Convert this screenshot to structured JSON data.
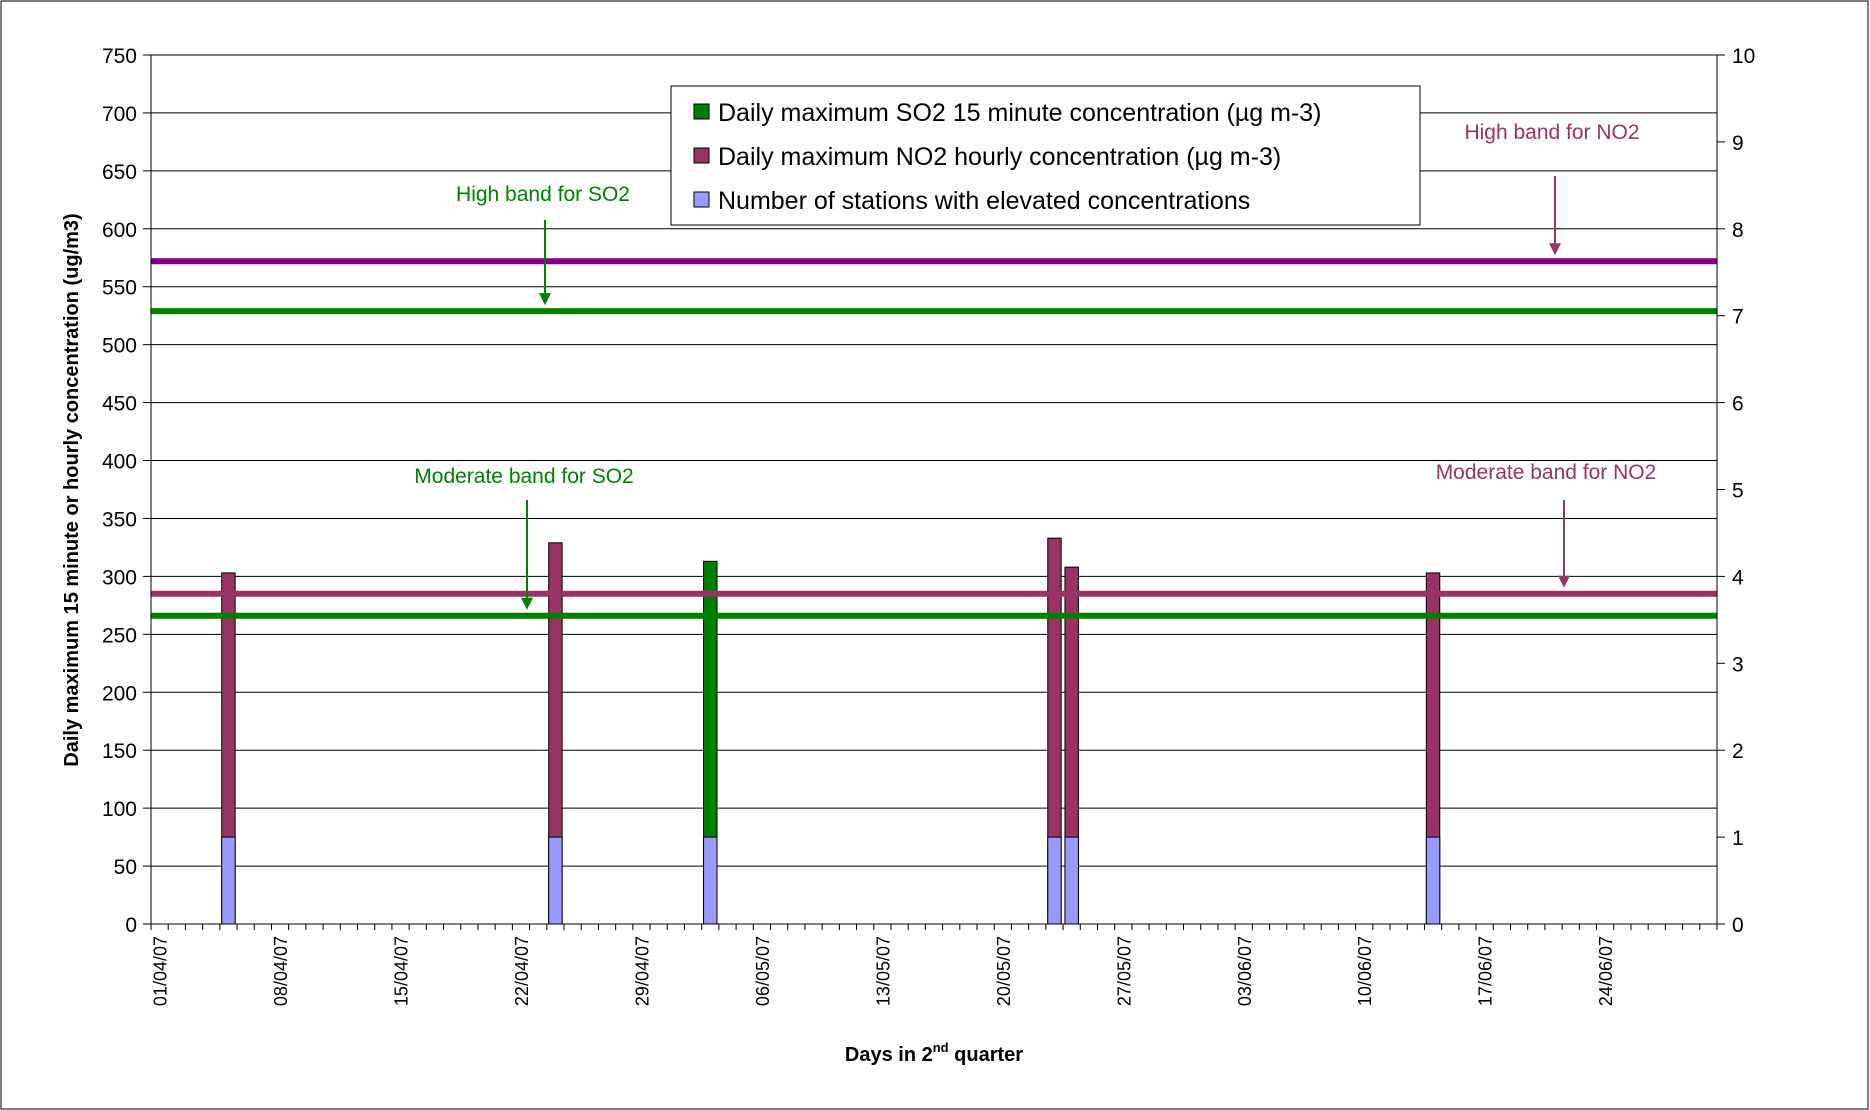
{
  "chart_data": {
    "type": "bar",
    "xlabel_main": "Days in 2",
    "xlabel_sup": "nd",
    "xlabel_tail": " quarter",
    "ylabel": "Daily maximum 15 minute or hourly concentration (ug/m3)",
    "y_left": {
      "min": 0,
      "max": 750,
      "step": 50,
      "ticks": [
        "0",
        "50",
        "100",
        "150",
        "200",
        "250",
        "300",
        "350",
        "400",
        "450",
        "500",
        "550",
        "600",
        "650",
        "700",
        "750"
      ]
    },
    "y_right": {
      "min": 0,
      "max": 10,
      "step": 1,
      "ticks": [
        "0",
        "1",
        "2",
        "3",
        "4",
        "5",
        "6",
        "7",
        "8",
        "9",
        "10"
      ]
    },
    "x_start": "01/04/07",
    "x_days": 91,
    "x_tick_labels": [
      "01/04/07",
      "08/04/07",
      "15/04/07",
      "22/04/07",
      "29/04/07",
      "06/05/07",
      "13/05/07",
      "20/05/07",
      "27/05/07",
      "03/06/07",
      "10/06/07",
      "17/06/07",
      "24/06/07"
    ],
    "series": [
      {
        "name": "Daily maximum SO2 15 minute concentration (µg m-3)",
        "color": "#008000",
        "axis": "left",
        "points": [
          {
            "date": "03/05/07",
            "value": 313
          }
        ]
      },
      {
        "name": "Daily maximum NO2 hourly concentration (µg m-3)",
        "color": "#993366",
        "axis": "left",
        "points": [
          {
            "date": "05/04/07",
            "value": 303
          },
          {
            "date": "24/04/07",
            "value": 329
          },
          {
            "date": "23/05/07",
            "value": 333
          },
          {
            "date": "24/05/07",
            "value": 308
          },
          {
            "date": "14/06/07",
            "value": 303
          }
        ]
      },
      {
        "name": "Number of stations with elevated concentrations",
        "color": "#9999ff",
        "axis": "right",
        "points": [
          {
            "date": "05/04/07",
            "value": 1
          },
          {
            "date": "24/04/07",
            "value": 1
          },
          {
            "date": "03/05/07",
            "value": 1
          },
          {
            "date": "23/05/07",
            "value": 1
          },
          {
            "date": "24/05/07",
            "value": 1
          },
          {
            "date": "14/06/07",
            "value": 1
          }
        ]
      }
    ],
    "bands": [
      {
        "name": "High band for NO2",
        "value": 572,
        "color": "#800080"
      },
      {
        "name": "High band for SO2",
        "value": 529,
        "color": "#008000"
      },
      {
        "name": "Moderate band for NO2",
        "value": 285,
        "color": "#993366"
      },
      {
        "name": "Moderate band for SO2",
        "value": 266,
        "color": "#008000"
      }
    ],
    "annotations": [
      {
        "text": "High band for SO2",
        "color": "#008000"
      },
      {
        "text": "Moderate band for SO2",
        "color": "#008000"
      },
      {
        "text": "High band for NO2",
        "color": "#993366"
      },
      {
        "text": "Moderate band for NO2",
        "color": "#993366"
      }
    ],
    "legend_position": "top-center",
    "grid": true
  }
}
